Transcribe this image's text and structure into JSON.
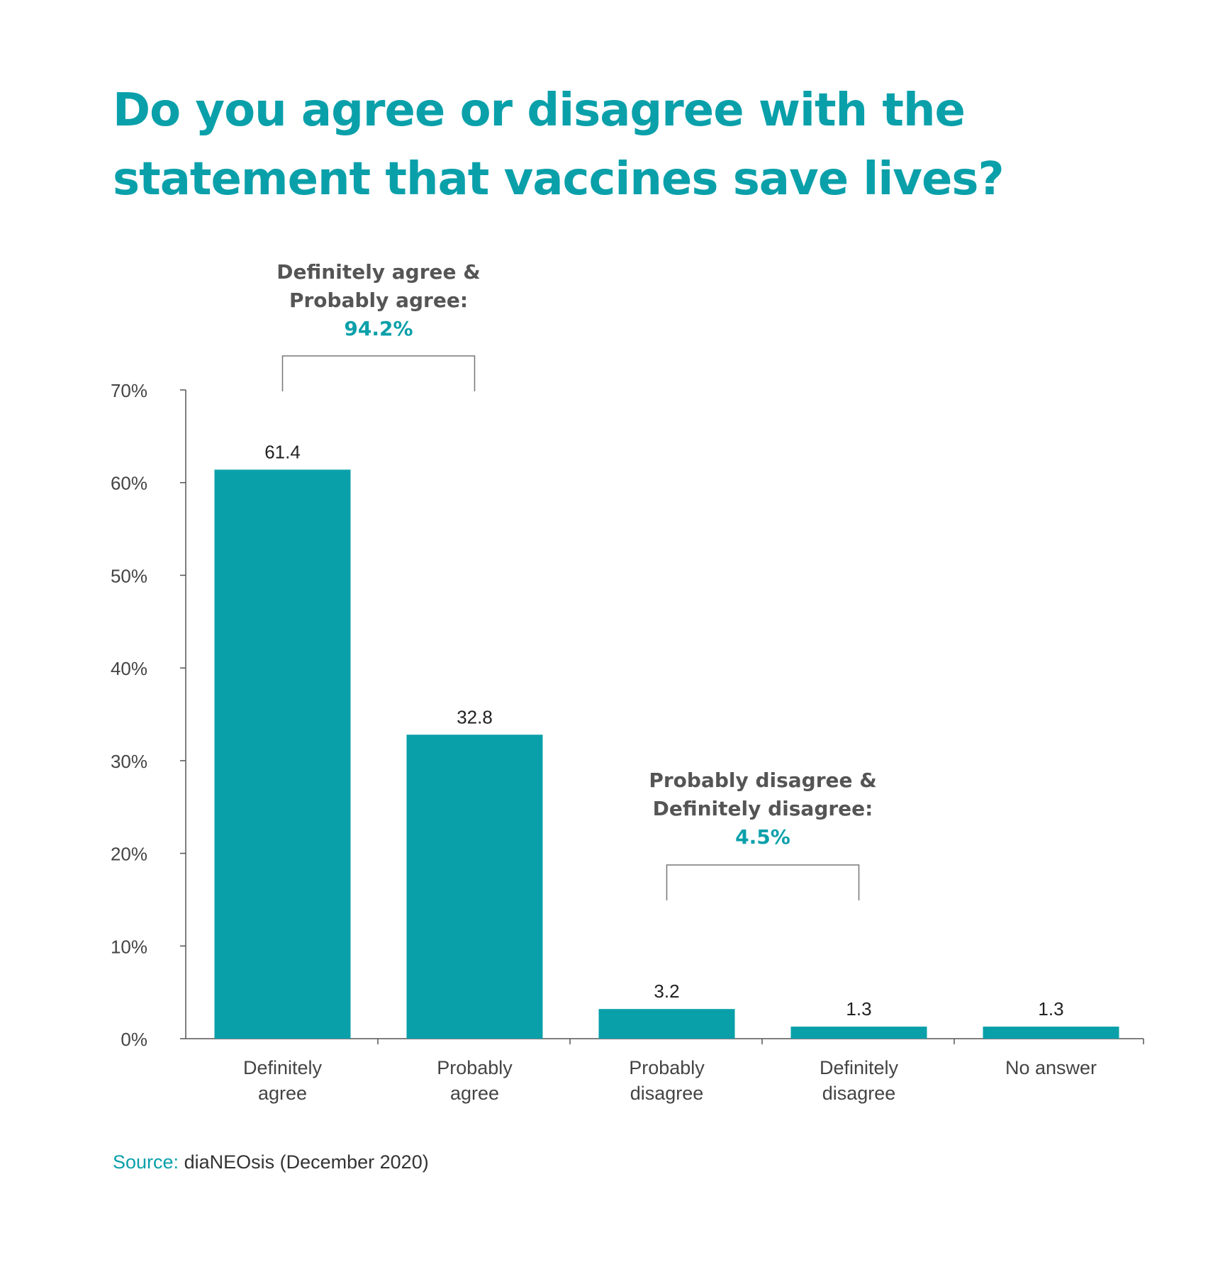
{
  "title": {
    "line1": "Do you agree or disagree with the",
    "line2": "statement that vaccines save lives?"
  },
  "colors": {
    "accent": "#0aa0aa",
    "axis": "#555555",
    "text": "#333333"
  },
  "chart_data": {
    "type": "bar",
    "categories": [
      [
        "Definitely",
        "agree"
      ],
      [
        "Probably",
        "agree"
      ],
      [
        "Probably",
        "disagree"
      ],
      [
        "Definitely",
        "disagree"
      ],
      [
        "No answer"
      ]
    ],
    "values": [
      61.4,
      32.8,
      3.2,
      1.3,
      1.3
    ],
    "value_labels": [
      "61.4",
      "32.8",
      "3.2",
      "1.3",
      "1.3"
    ],
    "ylim": [
      0,
      70
    ],
    "yticks": [
      "0%",
      "10%",
      "20%",
      "30%",
      "40%",
      "50%",
      "60%",
      "70%"
    ],
    "grid": false,
    "annotations": [
      {
        "lines": [
          "Definitely agree &",
          "Probably agree:"
        ],
        "value": "94.2%",
        "spans": [
          0,
          1
        ]
      },
      {
        "lines": [
          "Probably disagree &",
          "Definitely disagree:"
        ],
        "value": "4.5%",
        "spans": [
          2,
          3
        ]
      }
    ]
  },
  "source": {
    "label": "Source:",
    "text": " diaNEOsis (December 2020)"
  }
}
